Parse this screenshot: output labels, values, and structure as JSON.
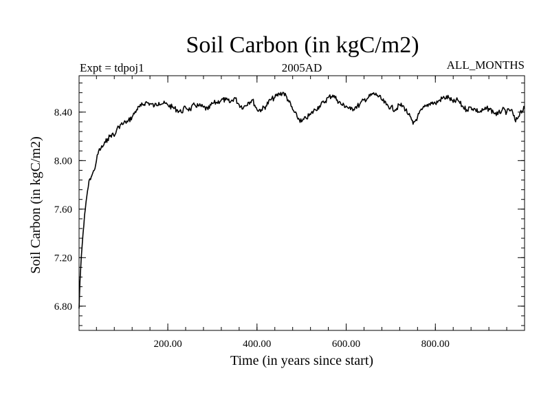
{
  "chart_data": {
    "type": "line",
    "title": "Soil Carbon (in kgC/m2)",
    "left_label": "Expt = tdpoj1",
    "center_label": "2005AD",
    "right_label": "ALL_MONTHS",
    "xlabel": "Time (in years since start)",
    "ylabel": "Soil Carbon (in kgC/m2)",
    "xlim": [
      1,
      1000
    ],
    "ylim": [
      6.6,
      8.7
    ],
    "xticks": [
      200,
      400,
      600,
      800
    ],
    "xtick_labels": [
      "200.00",
      "400.00",
      "600.00",
      "800.00"
    ],
    "yticks": [
      6.8,
      7.2,
      7.6,
      8.0,
      8.4
    ],
    "ytick_labels": [
      "6.80",
      "7.20",
      "7.60",
      "8.00",
      "8.40"
    ],
    "grid": false,
    "series": [
      {
        "name": "Soil Carbon",
        "color": "#000000",
        "x": [
          1,
          3,
          6,
          10,
          15,
          20,
          25,
          30,
          35,
          40,
          45,
          50,
          55,
          60,
          65,
          70,
          75,
          80,
          85,
          90,
          95,
          100,
          105,
          110,
          120,
          130,
          140,
          150,
          160,
          170,
          180,
          190,
          200,
          210,
          220,
          230,
          240,
          250,
          260,
          270,
          280,
          290,
          300,
          310,
          320,
          330,
          340,
          350,
          360,
          370,
          380,
          390,
          400,
          410,
          420,
          430,
          440,
          450,
          460,
          470,
          480,
          490,
          500,
          510,
          520,
          530,
          540,
          550,
          560,
          570,
          580,
          590,
          600,
          610,
          620,
          630,
          640,
          650,
          660,
          670,
          680,
          690,
          700,
          710,
          720,
          730,
          740,
          750,
          760,
          770,
          780,
          790,
          800,
          810,
          820,
          830,
          840,
          850,
          860,
          870,
          880,
          890,
          900,
          910,
          920,
          930,
          940,
          950,
          960,
          970,
          980,
          990,
          1000
        ],
        "y": [
          6.78,
          7.0,
          7.2,
          7.4,
          7.6,
          7.75,
          7.85,
          7.88,
          7.92,
          8.0,
          8.08,
          8.1,
          8.12,
          8.15,
          8.18,
          8.2,
          8.22,
          8.2,
          8.25,
          8.28,
          8.3,
          8.3,
          8.32,
          8.32,
          8.36,
          8.42,
          8.45,
          8.48,
          8.47,
          8.45,
          8.48,
          8.47,
          8.46,
          8.44,
          8.42,
          8.4,
          8.44,
          8.42,
          8.46,
          8.45,
          8.44,
          8.42,
          8.47,
          8.48,
          8.5,
          8.5,
          8.48,
          8.52,
          8.46,
          8.44,
          8.48,
          8.5,
          8.42,
          8.42,
          8.45,
          8.5,
          8.52,
          8.55,
          8.56,
          8.5,
          8.42,
          8.36,
          8.32,
          8.35,
          8.38,
          8.42,
          8.45,
          8.48,
          8.52,
          8.54,
          8.5,
          8.46,
          8.45,
          8.42,
          8.44,
          8.46,
          8.5,
          8.52,
          8.55,
          8.54,
          8.5,
          8.46,
          8.44,
          8.42,
          8.46,
          8.44,
          8.38,
          8.3,
          8.36,
          8.42,
          8.45,
          8.48,
          8.47,
          8.5,
          8.52,
          8.52,
          8.48,
          8.5,
          8.45,
          8.42,
          8.44,
          8.42,
          8.4,
          8.42,
          8.43,
          8.4,
          8.38,
          8.42,
          8.4,
          8.42,
          8.32,
          8.4,
          8.43
        ]
      }
    ]
  }
}
